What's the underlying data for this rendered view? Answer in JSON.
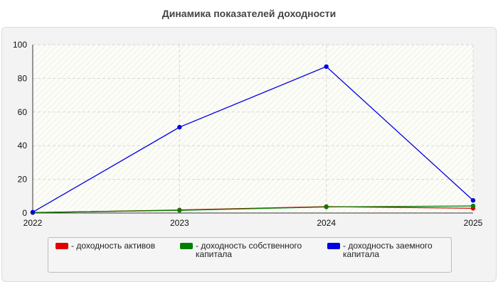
{
  "chart_data": {
    "type": "line",
    "title": "Динамика показателей доходности",
    "xlabel": "",
    "ylabel": "",
    "x": [
      "2022",
      "2023",
      "2024",
      "2025"
    ],
    "ylim": [
      0,
      100
    ],
    "yticks": [
      0,
      20,
      40,
      60,
      80,
      100
    ],
    "grid": true,
    "legend_position": "bottom",
    "series": [
      {
        "name": "- доходность активов",
        "color": "#e00000",
        "values": [
          0.2,
          1.8,
          3.8,
          2.8
        ]
      },
      {
        "name": "- доходность собственного капитала",
        "color": "#008000",
        "values": [
          0.3,
          1.6,
          3.6,
          4.2
        ]
      },
      {
        "name": "- доходность заемного капитала",
        "color": "#0000e0",
        "values": [
          0.5,
          51,
          87,
          7.5
        ]
      }
    ]
  }
}
